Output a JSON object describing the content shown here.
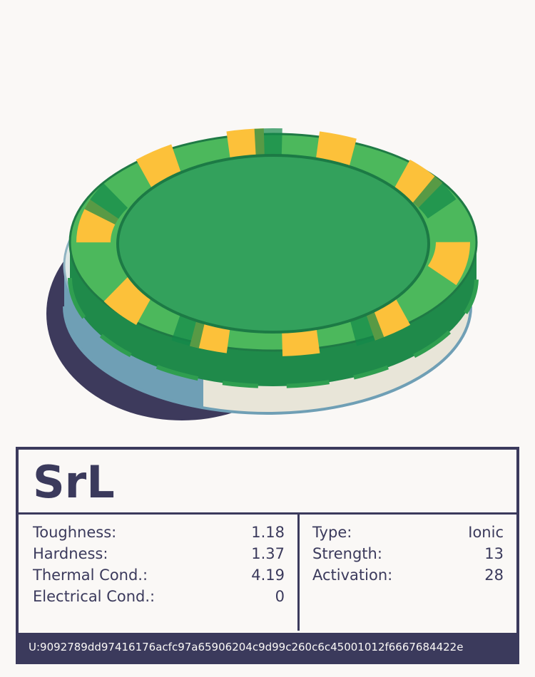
{
  "title": "SrL",
  "left": [
    {
      "label": "Toughness:",
      "value": 1.18
    },
    {
      "label": "Hardness:",
      "value": 1.37
    },
    {
      "label": "Thermal Cond.:",
      "value": 4.19
    },
    {
      "label": "Electrical Cond.:",
      "value": 0
    }
  ],
  "right": [
    {
      "label": "Type:",
      "value": "Ionic"
    },
    {
      "label": "Strength:",
      "value": 13
    },
    {
      "label": "Activation:",
      "value": 28
    }
  ],
  "footer": "U:9092789dd97416176acfc97a65906204c9d99c260c6c45001012f6667684422e"
}
